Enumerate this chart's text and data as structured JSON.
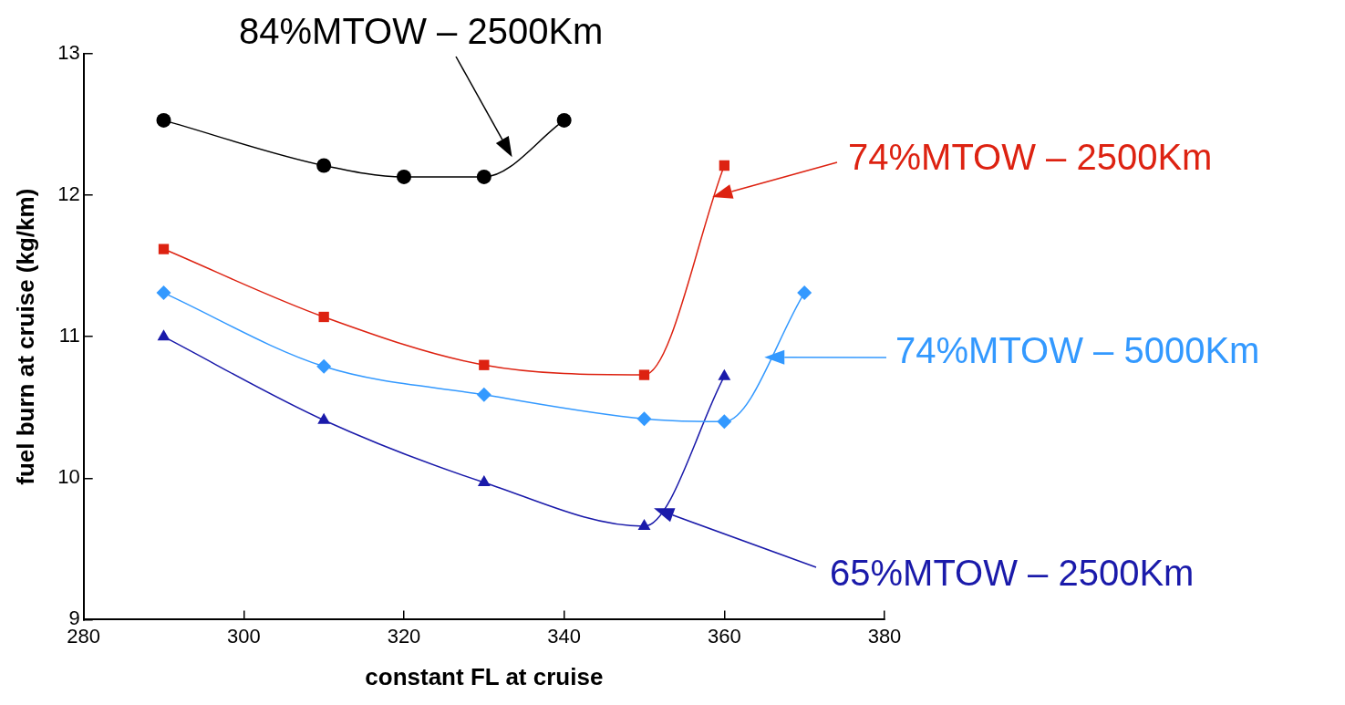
{
  "chart_data": {
    "type": "line",
    "xlabel": "constant FL at cruise",
    "ylabel": "fuel burn at cruise (kg/km)",
    "xlim": [
      280,
      380
    ],
    "xticks": [
      280,
      300,
      320,
      340,
      360,
      380
    ],
    "ylim": [
      9,
      13
    ],
    "yticks": [
      9,
      10,
      11,
      12,
      13
    ],
    "grid": false,
    "legend": "right",
    "line_style": "solid",
    "series": [
      {
        "name": "84%MTOW – 2500Km",
        "color": "#000000",
        "marker": "circle",
        "x": [
          290,
          310,
          320,
          330,
          340
        ],
        "values": [
          12.53,
          12.21,
          12.13,
          12.13,
          12.53
        ]
      },
      {
        "name": "74%MTOW – 2500Km",
        "color": "#dd2211",
        "marker": "square",
        "x": [
          290,
          310,
          330,
          350,
          360
        ],
        "values": [
          11.62,
          11.14,
          10.8,
          10.73,
          12.21
        ]
      },
      {
        "name": "74%MTOW – 5000Km",
        "color": "#3399ff",
        "marker": "diamond",
        "x": [
          290,
          310,
          330,
          350,
          360,
          370
        ],
        "values": [
          11.31,
          10.79,
          10.59,
          10.42,
          10.4,
          11.31
        ]
      },
      {
        "name": "65%MTOW – 2500Km",
        "color": "#1a1aaa",
        "marker": "triangle",
        "x": [
          290,
          310,
          330,
          350,
          360
        ],
        "values": [
          11.0,
          10.41,
          9.97,
          9.66,
          10.72
        ]
      }
    ]
  }
}
